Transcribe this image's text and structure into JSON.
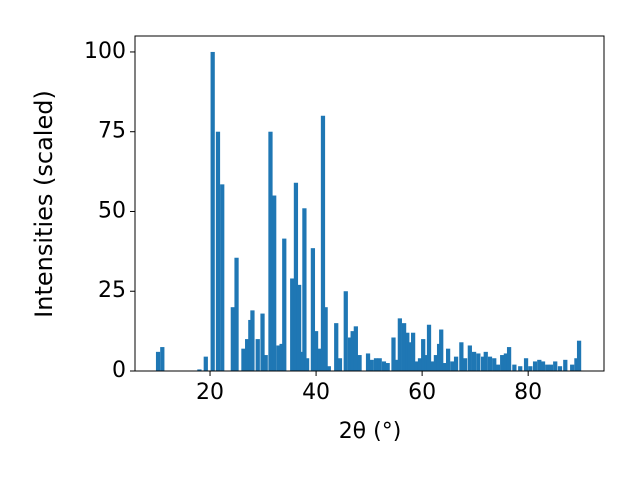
{
  "chart_data": {
    "type": "bar",
    "x_label": "2θ (°)",
    "y_label": "Intensities (scaled)",
    "color": "#1f77b4",
    "x": [
      10.2,
      11,
      18,
      19.2,
      20.5,
      21.5,
      22.3,
      24.3,
      25,
      26.3,
      27,
      27.6,
      28,
      29,
      29.9,
      30.5,
      31.4,
      32.1,
      32.9,
      33.5,
      34,
      35.5,
      36.2,
      36.8,
      37.4,
      37.8,
      38.3,
      39.4,
      40,
      40.7,
      41.3,
      41.8,
      42.4,
      43.8,
      44.5,
      45.6,
      46.4,
      46.9,
      47.5,
      48.2,
      49.8,
      50.5,
      51.3,
      52,
      52.8,
      53.5,
      54.6,
      55.2,
      55.8,
      56.6,
      57.2,
      57.7,
      58.3,
      58.9,
      59.6,
      60.2,
      60.8,
      61.3,
      61.9,
      62.6,
      63.2,
      63.6,
      64.2,
      64.9,
      65.7,
      66.4,
      67.4,
      68.1,
      69,
      69.8,
      70.6,
      71.5,
      72,
      72.8,
      73.6,
      74.3,
      75.1,
      75.8,
      76.4,
      77.4,
      78.5,
      79.6,
      80.4,
      81.3,
      82.1,
      82.8,
      83.6,
      84.3,
      85.1,
      86,
      87,
      88.3,
      89.1,
      89.6
    ],
    "values": [
      6,
      7.5,
      0.5,
      4.5,
      100,
      75,
      58.5,
      20,
      35.5,
      7,
      10,
      16,
      19,
      10,
      18,
      5,
      75,
      55,
      8,
      8.5,
      41.5,
      29,
      59,
      27,
      6,
      51,
      4,
      38.5,
      12.5,
      7,
      80,
      20,
      1.5,
      15,
      4,
      25,
      10.5,
      12.5,
      14,
      5,
      5.5,
      3.5,
      4,
      4,
      3,
      2.5,
      10.5,
      3.5,
      16.5,
      15,
      12,
      9,
      12,
      3,
      4,
      10,
      5,
      14.5,
      3,
      5,
      8.5,
      13,
      2.5,
      7,
      3,
      4.5,
      9,
      4,
      8,
      6,
      5.5,
      4.5,
      6,
      4.5,
      4,
      2,
      5,
      5.5,
      7.5,
      2,
      1.5,
      4,
      1.5,
      3,
      3.5,
      3,
      2,
      2,
      3,
      1.5,
      3.5,
      2,
      4,
      9.5
    ],
    "xlim": [
      5.85,
      94.3
    ],
    "ylim": [
      0,
      105
    ],
    "xticks": [
      20,
      40,
      60,
      80
    ],
    "yticks": [
      0,
      25,
      50,
      75,
      100
    ]
  }
}
